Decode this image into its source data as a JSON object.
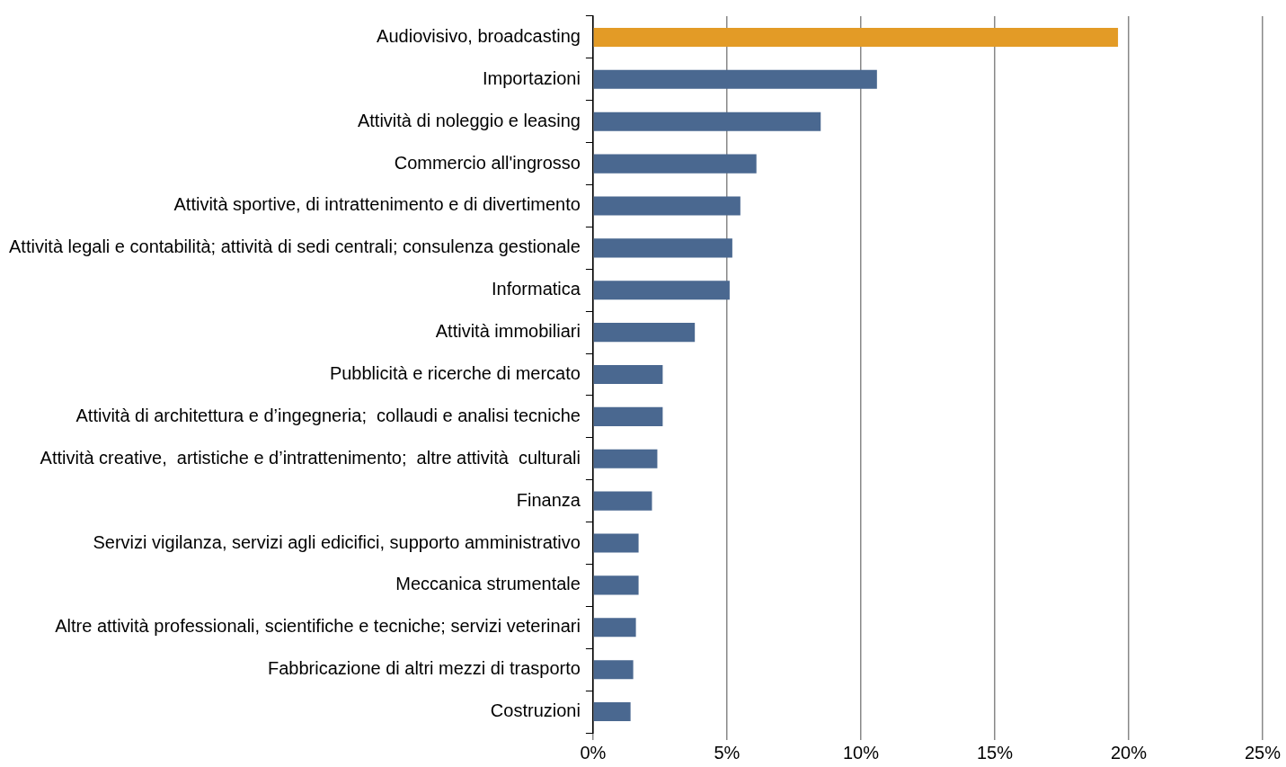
{
  "chart_data": {
    "type": "bar",
    "orientation": "horizontal",
    "categories": [
      "Audiovisivo, broadcasting",
      "Importazioni",
      "Attività di noleggio e leasing",
      "Commercio all'ingrosso",
      "Attività sportive, di intrattenimento e di divertimento",
      "Attività legali e contabilità; attività di sedi centrali; consulenza gestionale",
      "Informatica",
      "Attività immobiliari",
      "Pubblicità e ricerche di mercato",
      "Attività di architettura e d’ingegneria;  collaudi e analisi tecniche",
      "Attività creative,  artistiche e d’intrattenimento;  altre attività  culturali",
      "Finanza",
      "Servizi vigilanza, servizi agli edicifici, supporto amministrativo",
      "Meccanica strumentale",
      "Altre attività professionali, scientifiche e tecniche; servizi veterinari",
      "Fabbricazione di altri mezzi di trasporto",
      "Costruzioni"
    ],
    "values": [
      19.6,
      10.6,
      8.5,
      6.1,
      5.5,
      5.2,
      5.1,
      3.8,
      2.6,
      2.6,
      2.4,
      2.2,
      1.7,
      1.7,
      1.6,
      1.5,
      1.4
    ],
    "colors": [
      "#e39b26",
      "#4a6890",
      "#4a6890",
      "#4a6890",
      "#4a6890",
      "#4a6890",
      "#4a6890",
      "#4a6890",
      "#4a6890",
      "#4a6890",
      "#4a6890",
      "#4a6890",
      "#4a6890",
      "#4a6890",
      "#4a6890",
      "#4a6890",
      "#4a6890"
    ],
    "xlim": [
      0,
      25
    ],
    "xticks": [
      {
        "value": 0,
        "label": "0%"
      },
      {
        "value": 5,
        "label": "5%"
      },
      {
        "value": 10,
        "label": "10%"
      },
      {
        "value": 15,
        "label": "15%"
      },
      {
        "value": 20,
        "label": "20%"
      },
      {
        "value": 25,
        "label": "25%"
      }
    ],
    "grid": "x",
    "legend": false
  }
}
